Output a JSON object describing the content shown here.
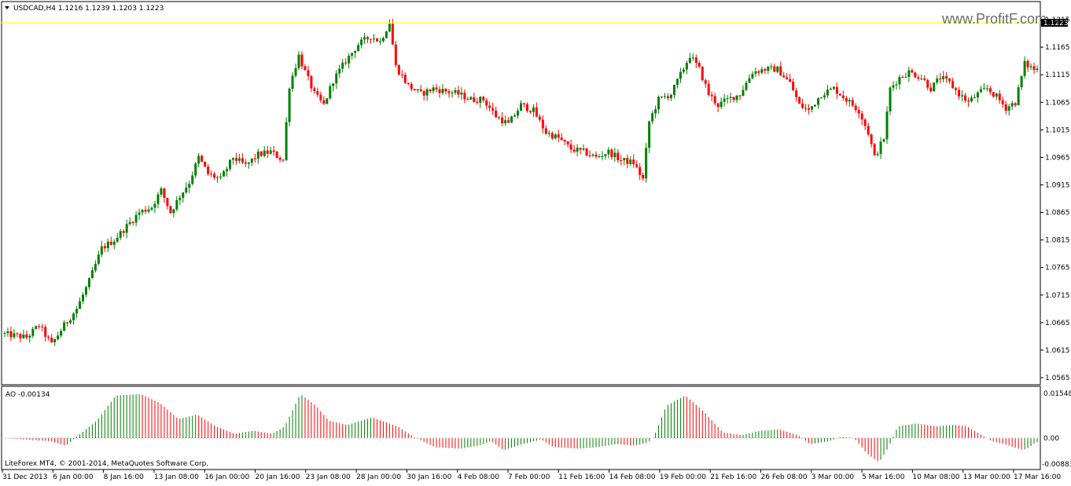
{
  "header": {
    "symbol_info": "USDCAD,H4  1.1216 1.1239 1.1203 1.1223"
  },
  "watermark": "www.ProfitF.com",
  "current_price_label": "1.1223",
  "indicator": {
    "label": "AO -0.00134",
    "scale_labels": [
      "0.01548",
      "0.00",
      "-0.00883"
    ]
  },
  "footer_text": "LiteForex MT4, © 2001-2014, MetaQuotes Software Corp.",
  "colors": {
    "bull": "#008000",
    "bear": "#ff0000",
    "high_line": "#ffff00",
    "frame": "#000000"
  },
  "chart_data": [
    {
      "type": "candlestick",
      "title": "USDCAD,H4",
      "ylim": [
        1.0555,
        1.1245
      ],
      "y_ticks": [
        "1.1215",
        "1.1165",
        "1.1115",
        "1.1065",
        "1.1015",
        "1.0965",
        "1.0915",
        "1.0865",
        "1.0815",
        "1.0765",
        "1.0715",
        "1.0665",
        "1.0615",
        "1.0565"
      ],
      "x_labels": [
        "31 Dec 2013",
        "6 Jan 00:00",
        "8 Jan 16:00",
        "13 Jan 08:00",
        "16 Jan 00:00",
        "20 Jan 16:00",
        "23 Jan 08:00",
        "28 Jan 00:00",
        "30 Jan 16:00",
        "4 Feb 08:00",
        "7 Feb 00:00",
        "11 Feb 16:00",
        "14 Feb 08:00",
        "19 Feb 00:00",
        "21 Feb 16:00",
        "26 Feb 08:00",
        "3 Mar 00:00",
        "5 Mar 16:00",
        "10 Mar 08:00",
        "13 Mar 00:00",
        "17 Mar 16:00"
      ],
      "path_points": [
        [
          0,
          1.0645
        ],
        [
          8,
          1.0638
        ],
        [
          12,
          1.066
        ],
        [
          16,
          1.0625
        ],
        [
          20,
          1.066
        ],
        [
          24,
          1.069
        ],
        [
          28,
          1.074
        ],
        [
          32,
          1.08
        ],
        [
          36,
          1.0815
        ],
        [
          40,
          1.084
        ],
        [
          44,
          1.0865
        ],
        [
          48,
          1.0875
        ],
        [
          51,
          1.0905
        ],
        [
          54,
          1.0865
        ],
        [
          57,
          1.0895
        ],
        [
          60,
          1.092
        ],
        [
          63,
          1.0965
        ],
        [
          66,
          1.0935
        ],
        [
          70,
          1.0925
        ],
        [
          74,
          1.0965
        ],
        [
          78,
          1.095
        ],
        [
          82,
          1.097
        ],
        [
          86,
          1.0975
        ],
        [
          90,
          1.096
        ],
        [
          92,
          1.1095
        ],
        [
          95,
          1.115
        ],
        [
          97,
          1.112
        ],
        [
          100,
          1.108
        ],
        [
          103,
          1.106
        ],
        [
          106,
          1.1105
        ],
        [
          110,
          1.114
        ],
        [
          114,
          1.117
        ],
        [
          118,
          1.1185
        ],
        [
          121,
          1.1175
        ],
        [
          124,
          1.121
        ],
        [
          126,
          1.113
        ],
        [
          130,
          1.1095
        ],
        [
          134,
          1.108
        ],
        [
          138,
          1.109
        ],
        [
          142,
          1.1085
        ],
        [
          146,
          1.108
        ],
        [
          150,
          1.107
        ],
        [
          154,
          1.107
        ],
        [
          158,
          1.104
        ],
        [
          162,
          1.1025
        ],
        [
          166,
          1.106
        ],
        [
          170,
          1.105
        ],
        [
          174,
          1.101
        ],
        [
          178,
          1.1
        ],
        [
          182,
          1.098
        ],
        [
          186,
          1.0975
        ],
        [
          190,
          1.0965
        ],
        [
          194,
          1.0975
        ],
        [
          198,
          1.096
        ],
        [
          202,
          1.0955
        ],
        [
          205,
          1.0925
        ],
        [
          207,
          1.103
        ],
        [
          210,
          1.107
        ],
        [
          214,
          1.108
        ],
        [
          217,
          1.1115
        ],
        [
          220,
          1.115
        ],
        [
          223,
          1.1125
        ],
        [
          226,
          1.108
        ],
        [
          229,
          1.106
        ],
        [
          232,
          1.107
        ],
        [
          236,
          1.108
        ],
        [
          240,
          1.112
        ],
        [
          244,
          1.1125
        ],
        [
          248,
          1.1125
        ],
        [
          252,
          1.11
        ],
        [
          255,
          1.106
        ],
        [
          258,
          1.105
        ],
        [
          262,
          1.108
        ],
        [
          266,
          1.109
        ],
        [
          270,
          1.107
        ],
        [
          274,
          1.105
        ],
        [
          277,
          1.101
        ],
        [
          279,
          1.0965
        ],
        [
          282,
          1.1
        ],
        [
          284,
          1.109
        ],
        [
          287,
          1.111
        ],
        [
          290,
          1.112
        ],
        [
          294,
          1.111
        ],
        [
          297,
          1.109
        ],
        [
          300,
          1.111
        ],
        [
          303,
          1.11
        ],
        [
          306,
          1.108
        ],
        [
          309,
          1.1065
        ],
        [
          312,
          1.108
        ],
        [
          315,
          1.109
        ],
        [
          318,
          1.1075
        ],
        [
          321,
          1.1055
        ],
        [
          324,
          1.1065
        ],
        [
          327,
          1.1135
        ],
        [
          330,
          1.1125
        ]
      ]
    },
    {
      "type": "bar",
      "title": "AO",
      "ylim": [
        -0.00883,
        0.01548
      ],
      "value_shown": -0.00134,
      "path_points": [
        [
          0,
          0.0
        ],
        [
          15,
          -0.001
        ],
        [
          20,
          -0.0025
        ],
        [
          30,
          0.006
        ],
        [
          36,
          0.0145
        ],
        [
          44,
          0.015
        ],
        [
          50,
          0.012
        ],
        [
          56,
          0.0065
        ],
        [
          62,
          0.008
        ],
        [
          68,
          0.004
        ],
        [
          74,
          0.0015
        ],
        [
          80,
          0.0025
        ],
        [
          86,
          0.0015
        ],
        [
          90,
          0.004
        ],
        [
          95,
          0.015
        ],
        [
          100,
          0.011
        ],
        [
          104,
          0.006
        ],
        [
          110,
          0.0045
        ],
        [
          118,
          0.007
        ],
        [
          126,
          0.004
        ],
        [
          132,
          0.0
        ],
        [
          138,
          -0.003
        ],
        [
          146,
          -0.0035
        ],
        [
          152,
          -0.0025
        ],
        [
          156,
          -0.001
        ],
        [
          160,
          -0.004
        ],
        [
          166,
          -0.002
        ],
        [
          172,
          -0.0005
        ],
        [
          176,
          -0.003
        ],
        [
          184,
          -0.0035
        ],
        [
          190,
          -0.003
        ],
        [
          196,
          -0.002
        ],
        [
          202,
          -0.0025
        ],
        [
          206,
          -0.0015
        ],
        [
          208,
          0.0005
        ],
        [
          212,
          0.011
        ],
        [
          218,
          0.0145
        ],
        [
          224,
          0.009
        ],
        [
          230,
          0.002
        ],
        [
          236,
          0.001
        ],
        [
          242,
          0.0025
        ],
        [
          248,
          0.003
        ],
        [
          254,
          0.001
        ],
        [
          258,
          -0.002
        ],
        [
          264,
          -0.001
        ],
        [
          268,
          0.0005
        ],
        [
          272,
          0.0
        ],
        [
          276,
          -0.005
        ],
        [
          280,
          -0.008
        ],
        [
          283,
          -0.003
        ],
        [
          286,
          0.004
        ],
        [
          292,
          0.005
        ],
        [
          298,
          0.004
        ],
        [
          304,
          0.0045
        ],
        [
          308,
          0.004
        ],
        [
          312,
          0.0015
        ],
        [
          316,
          -0.001
        ],
        [
          320,
          -0.002
        ],
        [
          326,
          -0.004
        ],
        [
          328,
          -0.003
        ],
        [
          330,
          -0.0013
        ]
      ]
    }
  ]
}
